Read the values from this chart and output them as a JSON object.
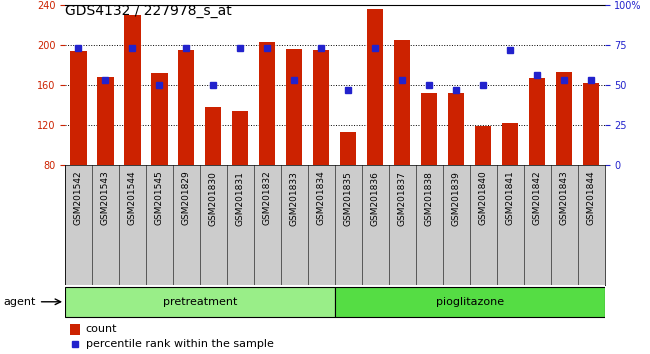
{
  "title": "GDS4132 / 227978_s_at",
  "samples": [
    "GSM201542",
    "GSM201543",
    "GSM201544",
    "GSM201545",
    "GSM201829",
    "GSM201830",
    "GSM201831",
    "GSM201832",
    "GSM201833",
    "GSM201834",
    "GSM201835",
    "GSM201836",
    "GSM201837",
    "GSM201838",
    "GSM201839",
    "GSM201840",
    "GSM201841",
    "GSM201842",
    "GSM201843",
    "GSM201844"
  ],
  "counts": [
    194,
    168,
    230,
    172,
    195,
    138,
    134,
    203,
    196,
    195,
    113,
    236,
    205,
    152,
    152,
    119,
    122,
    167,
    173,
    162
  ],
  "percentile_ranks": [
    73,
    53,
    73,
    50,
    73,
    50,
    73,
    73,
    53,
    73,
    47,
    73,
    53,
    50,
    47,
    50,
    72,
    56,
    53,
    53
  ],
  "bar_color": "#cc2200",
  "dot_color": "#2222cc",
  "n_pretreatment": 10,
  "n_pioglitazone": 10,
  "ylim_left": [
    80,
    240
  ],
  "ylim_right": [
    0,
    100
  ],
  "yticks_left": [
    80,
    120,
    160,
    200,
    240
  ],
  "yticks_right": [
    0,
    25,
    50,
    75,
    100
  ],
  "ytick_labels_right": [
    "0",
    "25",
    "50",
    "75",
    "100%"
  ],
  "ylabel_left_color": "#cc2200",
  "ylabel_right_color": "#2222cc",
  "agent_label": "agent",
  "pretreatment_label": "pretreatment",
  "pioglitazone_label": "pioglitazone",
  "legend_count_label": "count",
  "legend_percentile_label": "percentile rank within the sample",
  "pretreatment_color": "#99ee88",
  "pioglitazone_color": "#55dd44",
  "xtick_bg_color": "#cccccc",
  "title_fontsize": 10,
  "tick_fontsize": 7,
  "label_fontsize": 8,
  "legend_fontsize": 8
}
